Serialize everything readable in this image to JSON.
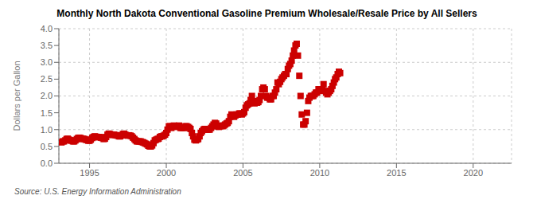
{
  "chart_data": {
    "type": "scatter",
    "title": "Monthly North Dakota Conventional Gasoline Premium Wholesale/Resale Price by All Sellers",
    "ylabel": "Dollars per Gallon",
    "annotation": "Source: U.S. Energy Information Administration",
    "color": "#cc0000",
    "marker": "square",
    "grid": true,
    "xlim": [
      1993.0,
      2022.5
    ],
    "ylim": [
      0.0,
      4.0
    ],
    "xticks": [
      1995,
      2000,
      2005,
      2010,
      2015,
      2020
    ],
    "yticks": [
      {
        "value": 0.0,
        "label": "0.0"
      },
      0.5,
      {
        "value": 1.0,
        "label": "1.0"
      },
      1.5,
      {
        "value": 2.0,
        "label": "2.0"
      },
      2.5,
      {
        "value": 3.0,
        "label": "3.0"
      },
      3.5,
      {
        "value": 4.0,
        "label": "4.0"
      }
    ],
    "x": [
      1993.17,
      1993.25,
      1993.33,
      1993.42,
      1993.5,
      1993.58,
      1993.67,
      1993.75,
      1993.83,
      1993.92,
      1994.0,
      1994.08,
      1994.17,
      1994.25,
      1994.33,
      1994.42,
      1994.5,
      1994.58,
      1994.67,
      1994.75,
      1994.83,
      1994.92,
      1995.0,
      1995.08,
      1995.17,
      1995.25,
      1995.33,
      1995.42,
      1995.5,
      1995.58,
      1995.67,
      1995.75,
      1995.83,
      1995.92,
      1996.0,
      1996.08,
      1996.17,
      1996.25,
      1996.33,
      1996.42,
      1996.5,
      1996.58,
      1996.67,
      1996.75,
      1996.83,
      1996.92,
      1997.0,
      1997.08,
      1997.17,
      1997.25,
      1997.33,
      1997.42,
      1997.5,
      1997.58,
      1997.67,
      1997.75,
      1997.83,
      1997.92,
      1998.0,
      1998.08,
      1998.17,
      1998.25,
      1998.33,
      1998.42,
      1998.5,
      1998.58,
      1998.67,
      1998.75,
      1998.83,
      1998.92,
      1999.0,
      1999.08,
      1999.17,
      1999.25,
      1999.33,
      1999.42,
      1999.5,
      1999.58,
      1999.67,
      1999.75,
      1999.83,
      1999.92,
      2000.0,
      2000.08,
      2000.17,
      2000.25,
      2000.33,
      2000.42,
      2000.5,
      2000.58,
      2000.67,
      2000.75,
      2000.83,
      2000.92,
      2001.0,
      2001.08,
      2001.17,
      2001.25,
      2001.33,
      2001.42,
      2001.5,
      2001.58,
      2001.67,
      2001.75,
      2001.83,
      2001.92,
      2002.0,
      2002.08,
      2002.17,
      2002.25,
      2002.33,
      2002.42,
      2002.5,
      2002.58,
      2002.67,
      2002.75,
      2002.83,
      2002.92,
      2003.0,
      2003.08,
      2003.17,
      2003.25,
      2003.33,
      2003.42,
      2003.5,
      2003.58,
      2003.67,
      2003.75,
      2003.83,
      2003.92,
      2004.0,
      2004.08,
      2004.17,
      2004.25,
      2004.33,
      2004.42,
      2004.5,
      2004.58,
      2004.67,
      2004.75,
      2004.83,
      2004.92,
      2005.0,
      2005.08,
      2005.17,
      2005.25,
      2005.33,
      2005.42,
      2005.5,
      2005.58,
      2005.67,
      2005.75,
      2005.83,
      2005.92,
      2006.0,
      2006.08,
      2006.17,
      2006.25,
      2006.33,
      2006.42,
      2006.5,
      2006.58,
      2006.67,
      2006.75,
      2006.83,
      2006.92,
      2007.0,
      2007.08,
      2007.17,
      2007.25,
      2007.33,
      2007.42,
      2007.5,
      2007.58,
      2007.67,
      2007.75,
      2007.83,
      2007.92,
      2008.0,
      2008.08,
      2008.17,
      2008.25,
      2008.33,
      2008.42,
      2008.5,
      2008.58,
      2008.67,
      2008.75,
      2008.83,
      2008.92,
      2009.0,
      2009.08,
      2009.17,
      2009.25,
      2009.33,
      2009.42,
      2009.5,
      2009.58,
      2009.67,
      2009.75,
      2009.83,
      2009.92,
      2010.0,
      2010.08,
      2010.17,
      2010.25,
      2010.33,
      2010.42,
      2010.5,
      2010.58,
      2010.67,
      2010.75,
      2010.83,
      2010.92,
      2011.0,
      2011.08,
      2011.17,
      2011.25,
      2011.33
    ],
    "values": [
      0.62,
      0.65,
      0.65,
      0.68,
      0.72,
      0.73,
      0.7,
      0.68,
      0.67,
      0.65,
      0.65,
      0.68,
      0.72,
      0.75,
      0.76,
      0.75,
      0.72,
      0.73,
      0.72,
      0.7,
      0.69,
      0.67,
      0.67,
      0.7,
      0.75,
      0.78,
      0.8,
      0.79,
      0.77,
      0.78,
      0.78,
      0.76,
      0.75,
      0.72,
      0.73,
      0.78,
      0.85,
      0.88,
      0.87,
      0.85,
      0.84,
      0.85,
      0.84,
      0.83,
      0.82,
      0.8,
      0.8,
      0.83,
      0.87,
      0.88,
      0.85,
      0.83,
      0.82,
      0.83,
      0.82,
      0.8,
      0.76,
      0.72,
      0.68,
      0.65,
      0.65,
      0.65,
      0.65,
      0.63,
      0.62,
      0.6,
      0.58,
      0.56,
      0.52,
      0.5,
      0.5,
      0.53,
      0.6,
      0.68,
      0.7,
      0.72,
      0.73,
      0.78,
      0.8,
      0.8,
      0.82,
      0.85,
      0.9,
      1.0,
      1.1,
      1.1,
      1.05,
      1.1,
      1.12,
      1.1,
      1.08,
      1.1,
      1.12,
      1.05,
      1.05,
      1.05,
      1.05,
      1.1,
      1.1,
      1.08,
      1.05,
      1.02,
      0.9,
      0.8,
      0.7,
      0.68,
      0.7,
      0.72,
      0.8,
      0.9,
      0.95,
      1.0,
      1.02,
      1.0,
      1.0,
      1.0,
      1.0,
      1.05,
      1.1,
      1.15,
      1.2,
      1.18,
      1.1,
      1.08,
      1.1,
      1.12,
      1.1,
      1.12,
      1.15,
      1.18,
      1.2,
      1.25,
      1.38,
      1.45,
      1.4,
      1.38,
      1.42,
      1.45,
      1.45,
      1.48,
      1.48,
      1.45,
      1.48,
      1.52,
      1.65,
      1.72,
      1.75,
      1.78,
      1.88,
      2.0,
      1.8,
      1.78,
      1.85,
      1.8,
      1.82,
      1.88,
      2.0,
      2.2,
      2.25,
      2.2,
      2.0,
      1.95,
      1.95,
      1.9,
      1.9,
      2.0,
      2.0,
      2.1,
      2.2,
      2.4,
      2.35,
      2.42,
      2.5,
      2.55,
      2.6,
      2.65,
      2.65,
      2.8,
      2.9,
      2.95,
      3.05,
      3.2,
      3.35,
      3.5,
      3.55,
      3.2,
      2.6,
      2.0,
      1.45,
      1.15,
      1.15,
      1.25,
      1.5,
      1.85,
      1.95,
      2.0,
      2.0,
      2.0,
      2.05,
      2.1,
      2.1,
      2.2,
      2.2,
      2.15,
      2.2,
      2.35,
      2.15,
      2.1,
      2.05,
      2.1,
      2.15,
      2.2,
      2.3,
      2.4,
      2.5,
      2.55,
      2.65,
      2.72,
      2.68
    ]
  }
}
